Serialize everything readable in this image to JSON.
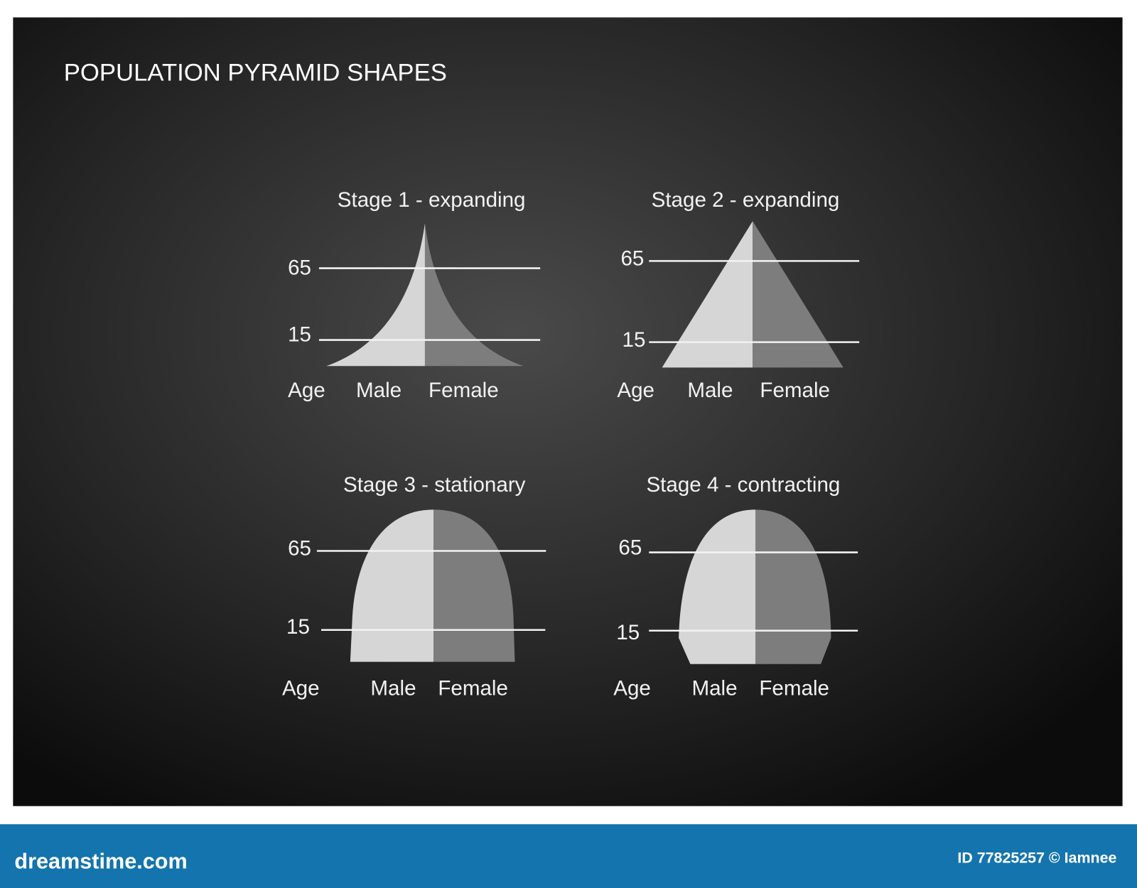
{
  "header": {
    "title": "POPULATION PYRAMID SHAPES"
  },
  "panels": [
    {
      "title": "Stage 1 - expanding",
      "levels": [
        "65",
        "15"
      ],
      "axis_label": "Age",
      "left_label": "Male",
      "right_label": "Female"
    },
    {
      "title": "Stage 2 - expanding",
      "levels": [
        "65",
        "15"
      ],
      "axis_label": "Age",
      "left_label": "Male",
      "right_label": "Female"
    },
    {
      "title": "Stage 3 - stationary",
      "levels": [
        "65",
        "15"
      ],
      "axis_label": "Age",
      "left_label": "Male",
      "right_label": "Female"
    },
    {
      "title": "Stage 4 - contracting",
      "levels": [
        "65",
        "15"
      ],
      "axis_label": "Age",
      "left_label": "Male",
      "right_label": "Female"
    }
  ],
  "footer": {
    "brand": "dreamstime.com",
    "credit": "ID 77825257 © Iamnee"
  }
}
